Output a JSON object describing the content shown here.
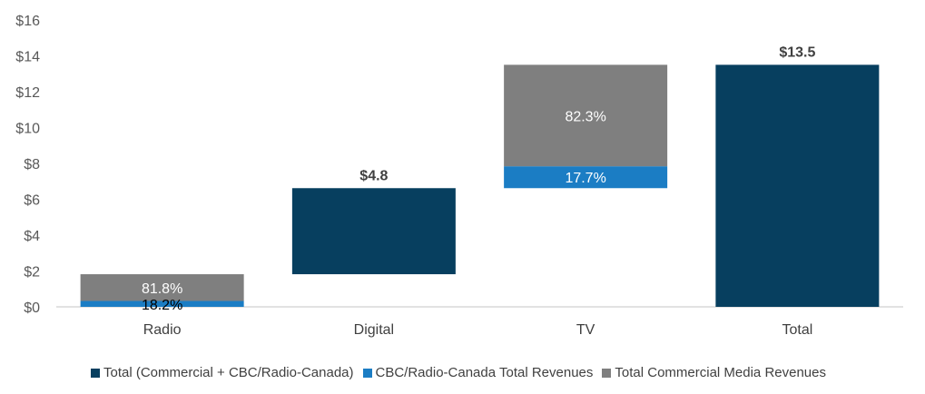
{
  "chart_data": {
    "type": "bar",
    "subtype": "waterfall",
    "title": "",
    "xlabel": "",
    "ylabel": "",
    "categories": [
      "Radio",
      "Digital",
      "TV",
      "Total"
    ],
    "ylim": [
      0,
      16
    ],
    "yticks": [
      0,
      2,
      4,
      6,
      8,
      10,
      12,
      14,
      16
    ],
    "ytick_labels": [
      "$0",
      "$2",
      "$4",
      "$6",
      "$8",
      "$10",
      "$12",
      "$14",
      "$16"
    ],
    "grid": false,
    "legend_position": "bottom",
    "series": [
      {
        "name": "Total (Commercial + CBC/Radio-Canada)",
        "color": "#073F5F",
        "bases": [
          null,
          1.82,
          null,
          0
        ],
        "values": [
          null,
          4.8,
          null,
          13.5
        ],
        "labels": [
          null,
          "$4.8",
          null,
          "$13.5"
        ]
      },
      {
        "name": "CBC/Radio-Canada Total Revenues",
        "color": "#1B7DC4",
        "bases": [
          0,
          null,
          6.62,
          null
        ],
        "values": [
          0.33,
          null,
          1.22,
          null
        ],
        "labels": [
          "18.2%",
          null,
          "17.7%",
          null
        ]
      },
      {
        "name": "Total Commercial Media Revenues",
        "color": "#7F7F7F",
        "bases": [
          0.33,
          null,
          7.84,
          null
        ],
        "values": [
          1.49,
          null,
          5.66,
          null
        ],
        "labels": [
          "81.8%",
          null,
          "82.3%",
          null
        ]
      }
    ]
  }
}
